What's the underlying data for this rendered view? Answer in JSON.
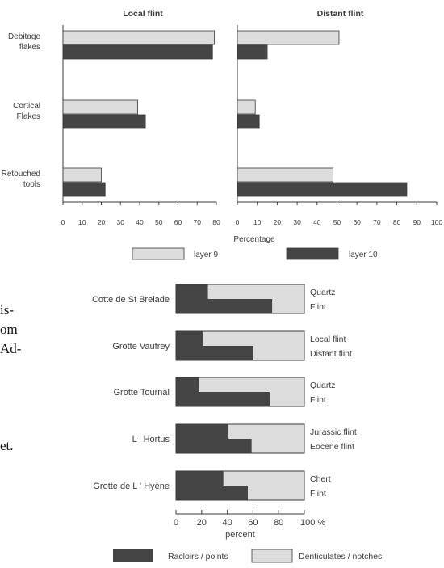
{
  "colors": {
    "light_fill": "#dcdcdc",
    "dark_fill": "#454545",
    "ink": "#3a3a3a"
  },
  "text_fragments": [
    "is-",
    "om",
    "Ad-",
    "et."
  ],
  "chart_data": [
    {
      "type": "bar",
      "orientation": "horizontal",
      "categories": [
        "Debitage\nflakes",
        "Cortical\nFlakes",
        "Retouched\ntools"
      ],
      "panels": [
        {
          "title": "Local flint",
          "xlim": [
            0,
            80
          ],
          "xticks": [
            "0",
            "10",
            "20",
            "30",
            "40",
            "50",
            "60",
            "70",
            "80"
          ],
          "series": [
            {
              "name": "layer 9",
              "values": [
                79,
                39,
                20
              ]
            },
            {
              "name": "layer 10",
              "values": [
                78,
                43,
                22
              ]
            }
          ]
        },
        {
          "title": "Distant flint",
          "xlim": [
            0,
            100
          ],
          "xticks": [
            "0",
            "10",
            "20",
            "30",
            "40",
            "50",
            "60",
            "70",
            "80",
            "90",
            "100"
          ],
          "series": [
            {
              "name": "layer 9",
              "values": [
                51,
                9,
                48
              ]
            },
            {
              "name": "layer 10",
              "values": [
                15,
                11,
                85
              ]
            }
          ]
        }
      ],
      "xlabel": "Percentage",
      "legend": [
        "layer 9",
        "layer 10"
      ],
      "legend_position": "bottom"
    },
    {
      "type": "bar",
      "orientation": "horizontal",
      "stacked": true,
      "xlim": [
        0,
        100
      ],
      "xticks": [
        "0",
        "20",
        "40",
        "60",
        "80",
        "100 %"
      ],
      "xlabel": "percent",
      "series_names": [
        "Racloirs / points",
        "Denticulates / notches"
      ],
      "legend_position": "bottom",
      "sites": [
        {
          "site": "Cotte de St Brelade",
          "rows": [
            {
              "label": "Quartz",
              "value": 25
            },
            {
              "label": "Flint",
              "value": 75
            }
          ]
        },
        {
          "site": "Grotte Vaufrey",
          "rows": [
            {
              "label": "Local flint",
              "value": 21
            },
            {
              "label": "Distant flint",
              "value": 60
            }
          ]
        },
        {
          "site": "Grotte Tournal",
          "rows": [
            {
              "label": "Quartz",
              "value": 18
            },
            {
              "label": "Flint",
              "value": 73
            }
          ]
        },
        {
          "site": "L ' Hortus",
          "rows": [
            {
              "label": "Jurassic flint",
              "value": 41
            },
            {
              "label": "Eocene flint",
              "value": 59
            }
          ]
        },
        {
          "site": "Grotte de L ' Hyène",
          "rows": [
            {
              "label": "Chert",
              "value": 37
            },
            {
              "label": "Flint",
              "value": 56
            }
          ]
        }
      ]
    }
  ]
}
